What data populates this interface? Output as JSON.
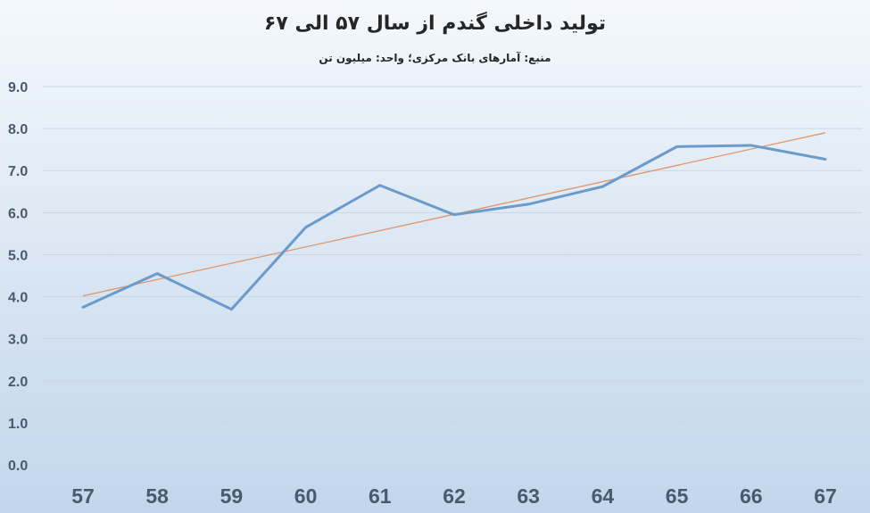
{
  "chart_data": {
    "type": "line",
    "title": "تولید داخلی گندم از سال ۵۷ الی ۶۷",
    "subtitle": "منبع: آمارهای بانک مرکزی؛ واحد: میلیون تن",
    "xlabel": "",
    "ylabel": "",
    "categories": [
      "57",
      "58",
      "59",
      "60",
      "61",
      "62",
      "63",
      "64",
      "65",
      "66",
      "67"
    ],
    "series": [
      {
        "values": [
          3.75,
          4.55,
          3.7,
          5.65,
          6.65,
          5.95,
          6.2,
          6.62,
          7.57,
          7.6,
          7.27
        ],
        "color": "#6b9bcb"
      }
    ],
    "trendline": {
      "type": "linear",
      "start": 4.02,
      "end": 7.9,
      "color": "#e0956a"
    },
    "ylim": [
      0,
      9
    ],
    "yticks": [
      "0.0",
      "1.0",
      "2.0",
      "3.0",
      "4.0",
      "5.0",
      "6.0",
      "7.0",
      "8.0",
      "9.0"
    ],
    "grid": true,
    "legend": "none"
  }
}
